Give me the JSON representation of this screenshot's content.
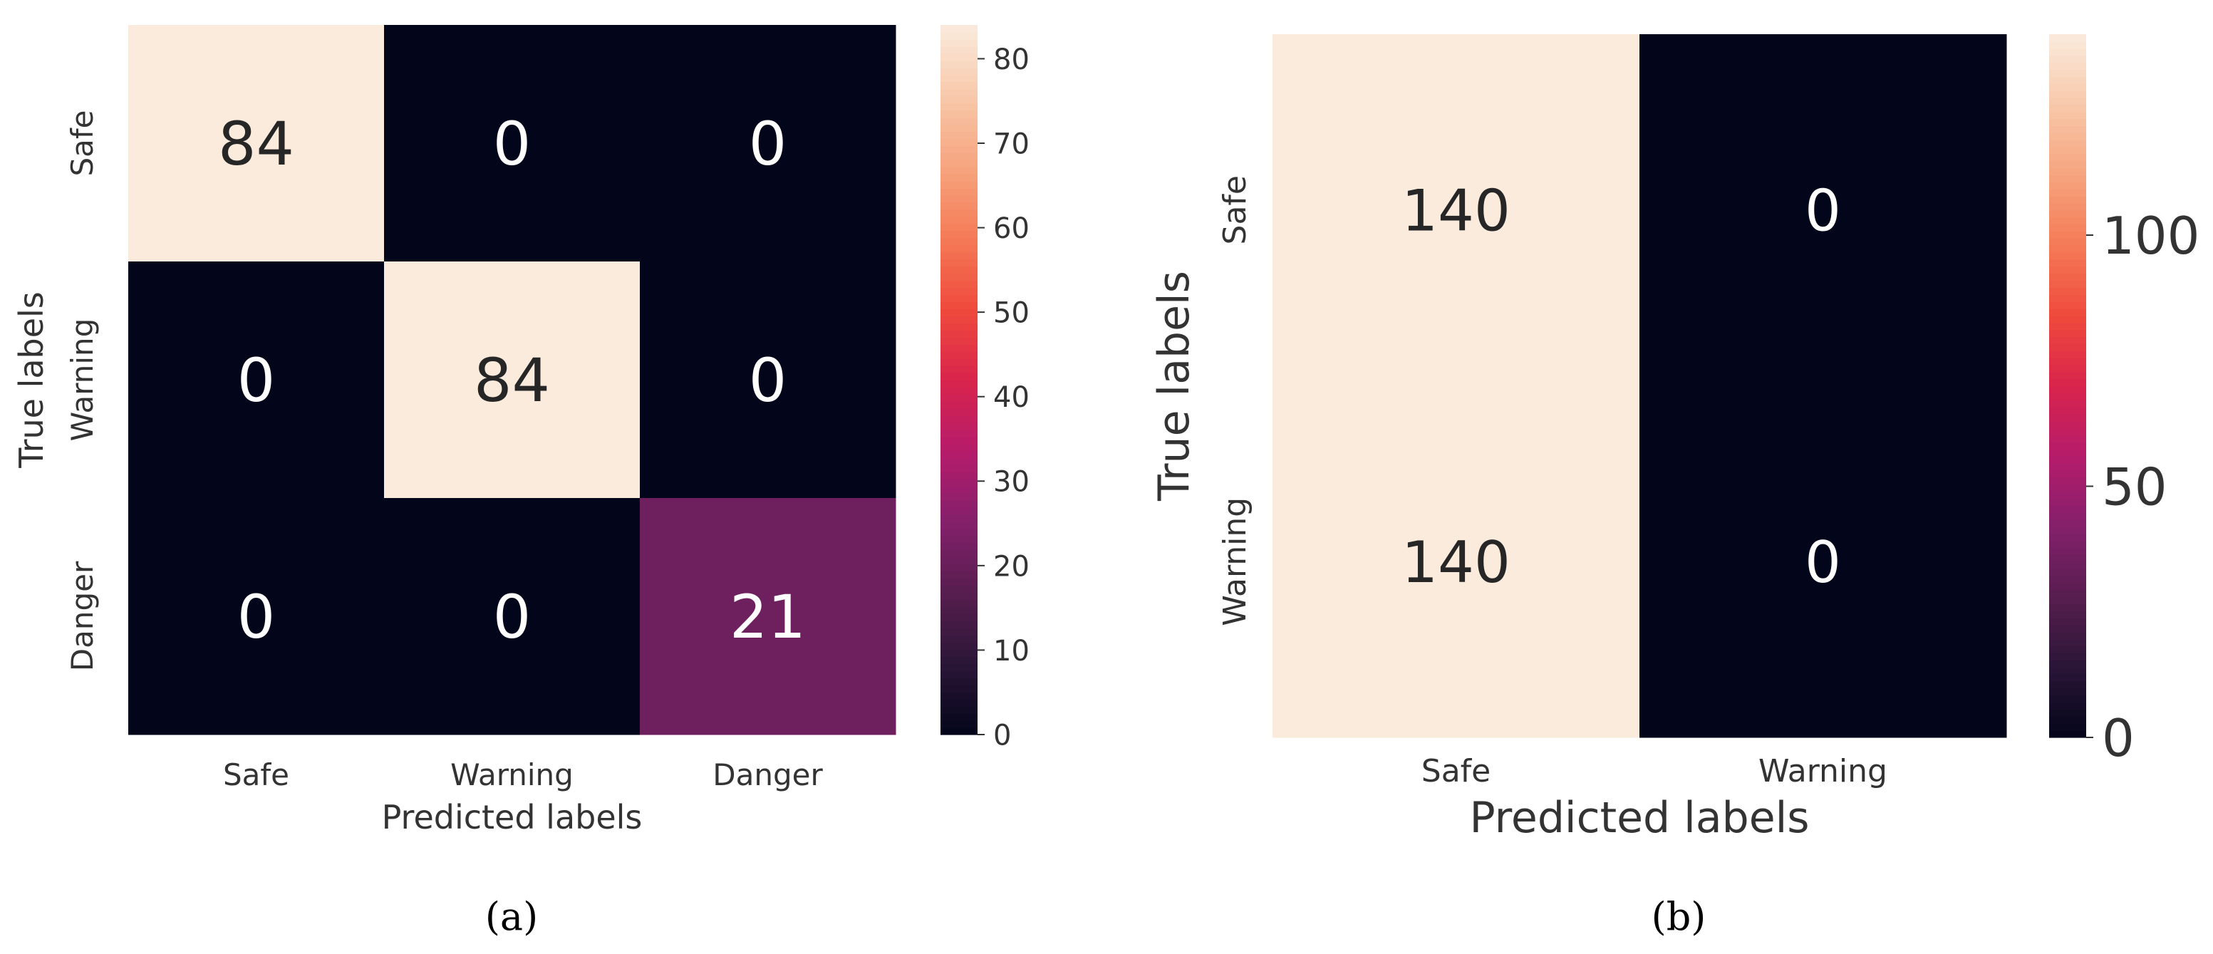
{
  "chart_data": [
    {
      "type": "heatmap",
      "panel_label": "(a)",
      "xlabel": "Predicted labels",
      "ylabel": "True labels",
      "x_categories": [
        "Safe",
        "Warning",
        "Danger"
      ],
      "y_categories": [
        "Safe",
        "Warning",
        "Danger"
      ],
      "matrix": [
        [
          84,
          0,
          0
        ],
        [
          0,
          84,
          0
        ],
        [
          0,
          0,
          21
        ]
      ],
      "colorbar": {
        "min": 0,
        "max": 84,
        "ticks": [
          0,
          10,
          20,
          30,
          40,
          50,
          60,
          70,
          80
        ]
      },
      "colormap": "rocket"
    },
    {
      "type": "heatmap",
      "panel_label": "(b)",
      "xlabel": "Predicted labels",
      "ylabel": "True labels",
      "x_categories": [
        "Safe",
        "Warning"
      ],
      "y_categories": [
        "Safe",
        "Warning"
      ],
      "matrix": [
        [
          140,
          0
        ],
        [
          140,
          0
        ]
      ],
      "colorbar": {
        "min": 0,
        "max": 140,
        "ticks": [
          0,
          50,
          100
        ]
      },
      "colormap": "rocket"
    }
  ],
  "colors": {
    "rocket": [
      "#03051a",
      "#2a1636",
      "#571e4f",
      "#84206b",
      "#b51c6b",
      "#d9244c",
      "#ef4a3c",
      "#f47a56",
      "#f6a47e",
      "#f8c8aa",
      "#faebdd"
    ],
    "text_light": "#ffffff",
    "text_dark": "#262626",
    "axis_text": "#333333"
  }
}
